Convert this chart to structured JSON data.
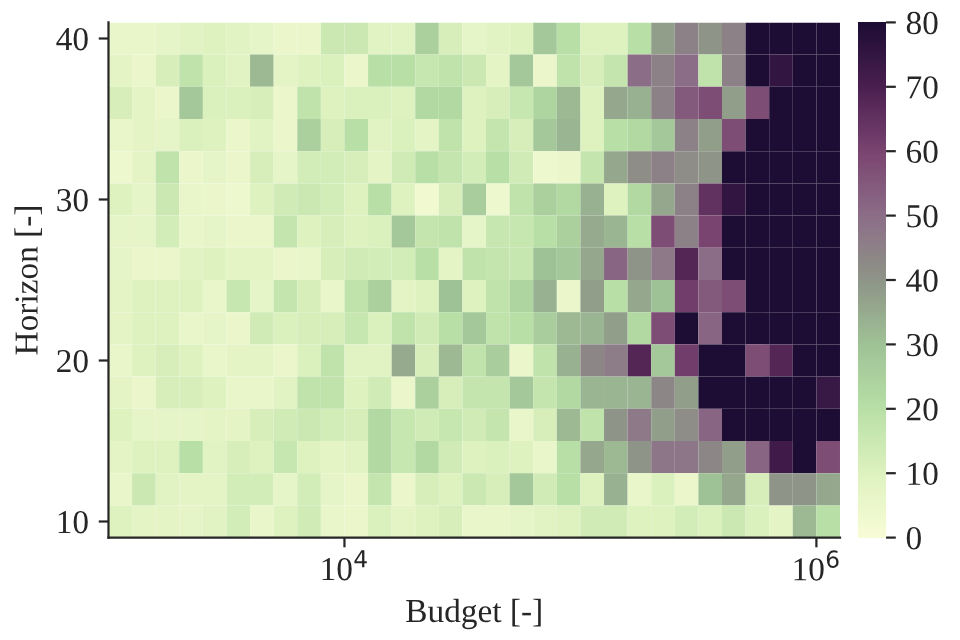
{
  "chart_data": {
    "type": "heatmap",
    "xlabel": "Budget [-]",
    "ylabel": "Horizon [-]",
    "log": "x",
    "x": [
      1122,
      1413,
      1778,
      2239,
      2818,
      3548,
      4467,
      5623,
      7079,
      8913,
      11220,
      14130,
      17780,
      22390,
      28180,
      35480,
      44670,
      56230,
      70790,
      89130,
      112200,
      141300,
      177800,
      223900,
      281800,
      354800,
      446700,
      562300,
      707900,
      891300,
      1122000
    ],
    "xlim": [
      1000,
      1259000
    ],
    "ylim": [
      9,
      41
    ],
    "xticks": [
      {
        "value": 10000,
        "label": "10$^{4}$"
      },
      {
        "value": 1000000,
        "label": "10$^{6}$"
      }
    ],
    "yticks": [
      10,
      20,
      30,
      40
    ],
    "clim": [
      0,
      80
    ],
    "cticks": [
      0,
      10,
      20,
      30,
      40,
      50,
      60,
      70,
      80
    ],
    "cells": [
      [
        6,
        6,
        7,
        9,
        10,
        9,
        7,
        5,
        5,
        15,
        15,
        9,
        9,
        25,
        12,
        7,
        9,
        10,
        28,
        20,
        10,
        10,
        20,
        38,
        45,
        40,
        45,
        80,
        80,
        80,
        80
      ],
      [
        8,
        5,
        12,
        18,
        11,
        9,
        32,
        8,
        10,
        11,
        5,
        20,
        20,
        16,
        18,
        15,
        8,
        28,
        5,
        18,
        12,
        17,
        50,
        45,
        50,
        18,
        45,
        80,
        75,
        80,
        80
      ],
      [
        12,
        8,
        5,
        28,
        11,
        11,
        12,
        5,
        18,
        10,
        11,
        11,
        10,
        22,
        22,
        10,
        12,
        16,
        24,
        32,
        10,
        36,
        34,
        45,
        55,
        58,
        38,
        58,
        80,
        80,
        80
      ],
      [
        6,
        8,
        7,
        11,
        10,
        5,
        9,
        5,
        25,
        12,
        20,
        9,
        11,
        8,
        18,
        10,
        17,
        12,
        28,
        33,
        10,
        20,
        22,
        28,
        45,
        38,
        58,
        80,
        80,
        80,
        80
      ],
      [
        4,
        8,
        18,
        5,
        7,
        5,
        12,
        7,
        13,
        13,
        12,
        8,
        14,
        20,
        17,
        13,
        20,
        14,
        4,
        5,
        17,
        36,
        42,
        45,
        42,
        40,
        80,
        80,
        80,
        80,
        80
      ],
      [
        10,
        7,
        15,
        6,
        5,
        4,
        10,
        14,
        15,
        13,
        10,
        20,
        10,
        3,
        12,
        26,
        4,
        18,
        25,
        22,
        34,
        10,
        22,
        36,
        45,
        65,
        75,
        80,
        80,
        80,
        80
      ],
      [
        7,
        7,
        13,
        6,
        7,
        5,
        5,
        17,
        10,
        12,
        10,
        11,
        28,
        17,
        18,
        7,
        16,
        16,
        20,
        25,
        35,
        33,
        20,
        58,
        45,
        60,
        80,
        80,
        80,
        80,
        80
      ],
      [
        7,
        5,
        5,
        9,
        10,
        8,
        8,
        5,
        6,
        12,
        14,
        13,
        13,
        20,
        8,
        18,
        17,
        16,
        30,
        28,
        36,
        52,
        40,
        47,
        68,
        50,
        80,
        80,
        80,
        80,
        80
      ],
      [
        8,
        10,
        10,
        10,
        6,
        16,
        7,
        17,
        12,
        6,
        18,
        25,
        8,
        10,
        30,
        10,
        18,
        24,
        34,
        5,
        38,
        20,
        36,
        30,
        62,
        55,
        58,
        80,
        80,
        80,
        80
      ],
      [
        8,
        10,
        10,
        6,
        7,
        5,
        14,
        11,
        12,
        12,
        16,
        11,
        18,
        14,
        20,
        28,
        18,
        20,
        26,
        32,
        33,
        38,
        22,
        58,
        80,
        52,
        80,
        80,
        80,
        80,
        80
      ],
      [
        6,
        10,
        12,
        10,
        6,
        8,
        8,
        5,
        11,
        18,
        9,
        9,
        35,
        12,
        32,
        18,
        26,
        5,
        18,
        34,
        44,
        46,
        68,
        28,
        62,
        80,
        80,
        58,
        68,
        80,
        80
      ],
      [
        8,
        5,
        12,
        12,
        10,
        6,
        6,
        9,
        18,
        18,
        10,
        14,
        5,
        25,
        12,
        17,
        17,
        28,
        17,
        22,
        33,
        33,
        33,
        44,
        38,
        80,
        80,
        80,
        80,
        80,
        74
      ],
      [
        10,
        7,
        7,
        7,
        8,
        8,
        12,
        14,
        15,
        13,
        12,
        22,
        16,
        14,
        16,
        14,
        17,
        6,
        12,
        32,
        18,
        40,
        47,
        38,
        42,
        52,
        80,
        80,
        80,
        80,
        80
      ],
      [
        8,
        10,
        10,
        20,
        9,
        12,
        10,
        16,
        10,
        8,
        9,
        22,
        16,
        22,
        14,
        10,
        11,
        10,
        6,
        20,
        36,
        32,
        40,
        48,
        48,
        44,
        38,
        52,
        72,
        80,
        58
      ],
      [
        6,
        15,
        9,
        8,
        8,
        13,
        13,
        7,
        13,
        7,
        5,
        17,
        5,
        12,
        10,
        15,
        12,
        28,
        14,
        20,
        10,
        34,
        6,
        11,
        5,
        30,
        36,
        12,
        40,
        40,
        36
      ],
      [
        10,
        8,
        8,
        7,
        9,
        13,
        6,
        10,
        14,
        6,
        5,
        11,
        8,
        10,
        12,
        6,
        6,
        7,
        9,
        10,
        14,
        14,
        10,
        10,
        13,
        11,
        15,
        11,
        8,
        32,
        20
      ]
    ]
  }
}
